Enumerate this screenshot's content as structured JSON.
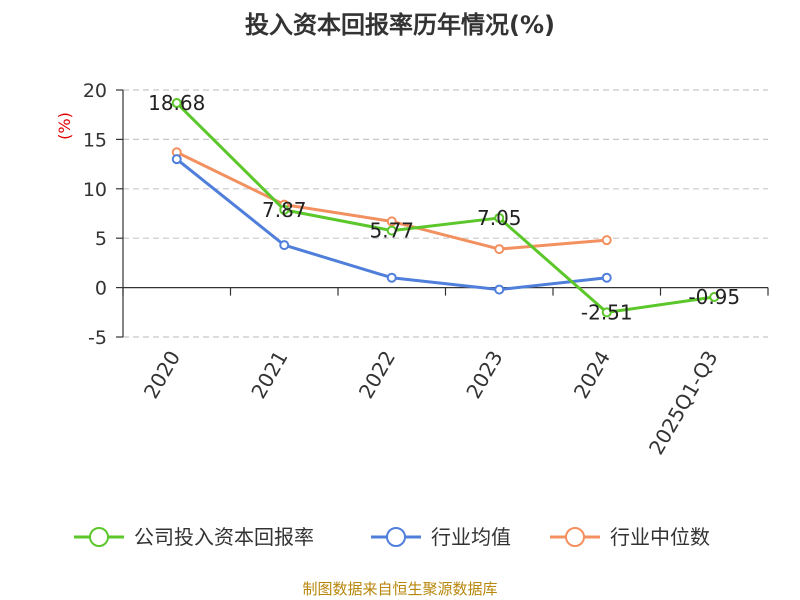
{
  "chart_data": {
    "type": "line",
    "title": "投入资本回报率历年情况(%)",
    "ylabel": "(%)",
    "ylim": [
      -5,
      20
    ],
    "yticks": [
      20,
      15,
      10,
      5,
      0,
      -5
    ],
    "categories": [
      "2020",
      "2021",
      "2022",
      "2023",
      "2024",
      "2025Q1-Q3"
    ],
    "series": [
      {
        "name": "公司投入资本回报率",
        "color": "#5cc72a",
        "values": [
          18.68,
          7.87,
          5.77,
          7.05,
          -2.51,
          -0.95
        ],
        "labels": [
          "18.68",
          "7.87",
          "5.77",
          "7.05",
          "-2.51",
          "-0.95"
        ]
      },
      {
        "name": "行业均值",
        "color": "#4f7fdb",
        "values": [
          13.0,
          4.3,
          1.0,
          -0.2,
          1.0,
          null
        ]
      },
      {
        "name": "行业中位数",
        "color": "#f39060",
        "values": [
          13.7,
          8.4,
          6.7,
          3.9,
          4.8,
          null
        ]
      }
    ],
    "source": "制图数据来自恒生聚源数据库"
  }
}
